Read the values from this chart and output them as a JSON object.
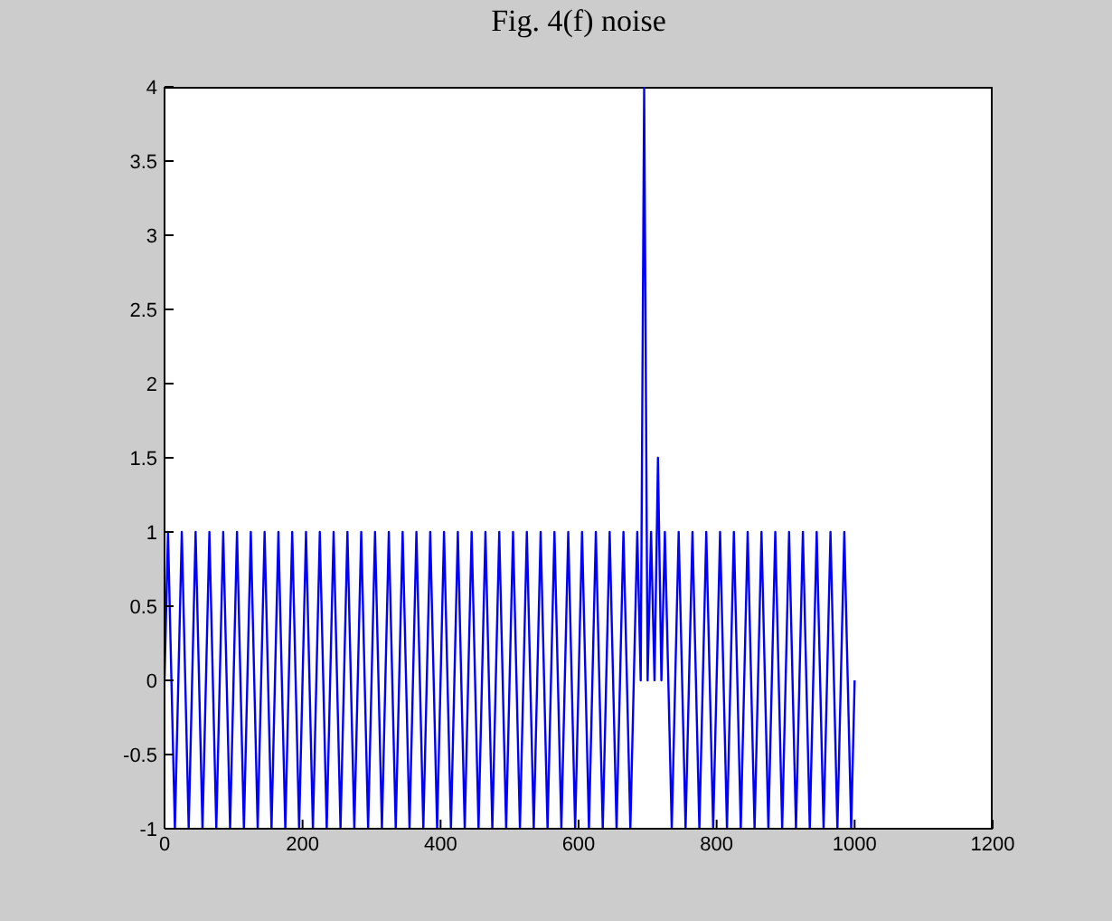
{
  "chart_data": {
    "type": "line",
    "title": "Fig. 4(f) noise",
    "x": [
      0,
      5,
      15,
      25,
      35,
      45,
      55,
      65,
      75,
      85,
      95,
      105,
      115,
      125,
      135,
      145,
      155,
      165,
      175,
      185,
      195,
      205,
      215,
      225,
      235,
      245,
      255,
      265,
      275,
      285,
      295,
      305,
      315,
      325,
      335,
      345,
      355,
      365,
      375,
      385,
      395,
      405,
      415,
      425,
      435,
      445,
      455,
      465,
      475,
      485,
      495,
      505,
      515,
      525,
      535,
      545,
      555,
      565,
      575,
      585,
      595,
      605,
      615,
      625,
      635,
      645,
      655,
      665,
      675,
      685,
      690,
      695,
      700,
      705,
      710,
      715,
      720,
      725,
      735,
      745,
      755,
      765,
      775,
      785,
      795,
      805,
      815,
      825,
      835,
      845,
      855,
      865,
      875,
      885,
      895,
      905,
      915,
      925,
      935,
      945,
      955,
      965,
      975,
      985,
      995,
      1000
    ],
    "series": [
      {
        "color": "#0000ff",
        "values": [
          0,
          1,
          -1,
          1,
          -1,
          1,
          -1,
          1,
          -1,
          1,
          -1,
          1,
          -1,
          1,
          -1,
          1,
          -1,
          1,
          -1,
          1,
          -1,
          1,
          -1,
          1,
          -1,
          1,
          -1,
          1,
          -1,
          1,
          -1,
          1,
          -1,
          1,
          -1,
          1,
          -1,
          1,
          -1,
          1,
          -1,
          1,
          -1,
          1,
          -1,
          1,
          -1,
          1,
          -1,
          1,
          -1,
          1,
          -1,
          1,
          -1,
          1,
          -1,
          1,
          -1,
          1,
          -1,
          1,
          -1,
          1,
          -1,
          1,
          -1,
          1,
          -1,
          1,
          0,
          4,
          0,
          1,
          0,
          1.5,
          0,
          1,
          -1,
          1,
          -1,
          1,
          -1,
          1,
          -1,
          1,
          -1,
          1,
          -1,
          1,
          -1,
          1,
          -1,
          1,
          -1,
          1,
          -1,
          1,
          -1,
          1,
          -1,
          1,
          -1,
          1,
          -1,
          0
        ]
      }
    ],
    "xlim": [
      0,
      1200
    ],
    "xticks": [
      0,
      200,
      400,
      600,
      800,
      1000,
      1200
    ],
    "ylim": [
      -1,
      4
    ],
    "yticks": [
      -1,
      -0.5,
      0,
      0.5,
      1,
      1.5,
      2,
      2.5,
      3,
      3.5,
      4
    ]
  }
}
